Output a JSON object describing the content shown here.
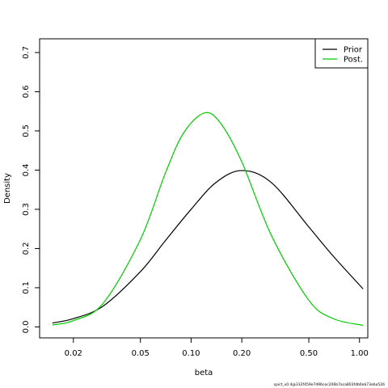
{
  "chart_data": {
    "type": "line",
    "xlabel": "beta",
    "ylabel": "Density",
    "x_scale": "log",
    "xlim": [
      0.0126,
      1.12
    ],
    "ylim": [
      -0.028,
      0.735
    ],
    "x_ticks": [
      0.02,
      0.05,
      0.1,
      0.2,
      0.5,
      1.0
    ],
    "x_tick_labels": [
      "0.02",
      "0.05",
      "0.10",
      "0.20",
      "0.50",
      "1.00"
    ],
    "y_ticks": [
      0.0,
      0.1,
      0.2,
      0.3,
      0.4,
      0.5,
      0.6,
      0.7
    ],
    "y_tick_labels": [
      "0.0",
      "0.1",
      "0.2",
      "0.3",
      "0.4",
      "0.5",
      "0.6",
      "0.7"
    ],
    "legend_position": "top-right",
    "grid": false,
    "series": [
      {
        "name": "Prior",
        "color": "#000000",
        "x": [
          0.015,
          0.02,
          0.03,
          0.05,
          0.07,
          0.1,
          0.14,
          0.2,
          0.3,
          0.5,
          0.7,
          1.05
        ],
        "y": [
          0.01,
          0.021,
          0.053,
          0.141,
          0.219,
          0.3,
          0.368,
          0.399,
          0.368,
          0.255,
          0.18,
          0.097
        ]
      },
      {
        "name": "Post.",
        "color": "#00cd00",
        "x": [
          0.015,
          0.02,
          0.03,
          0.05,
          0.07,
          0.09,
          0.12,
          0.15,
          0.2,
          0.3,
          0.5,
          0.7,
          1.05
        ],
        "y": [
          0.005,
          0.016,
          0.06,
          0.223,
          0.39,
          0.494,
          0.546,
          0.519,
          0.421,
          0.233,
          0.068,
          0.021,
          0.004
        ]
      }
    ],
    "footer": "spict_v0.4@332f459e7d96cec206b7aca803fdb0eb73eba526"
  }
}
